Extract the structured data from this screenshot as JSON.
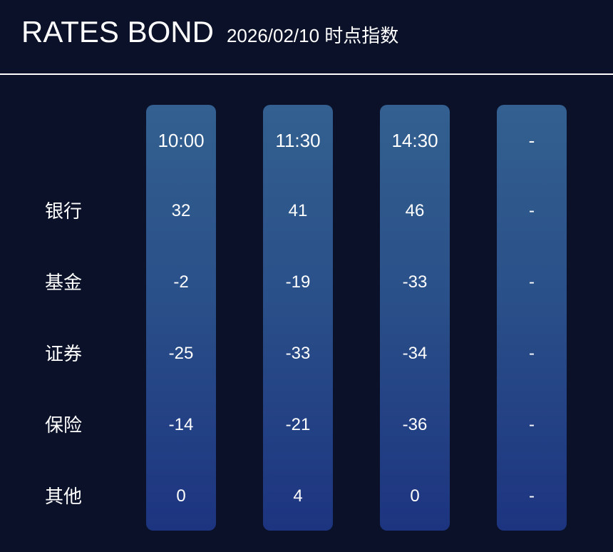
{
  "header": {
    "title": "RATES BOND",
    "subtitle": "2026/02/10 时点指数"
  },
  "table": {
    "column_headers": [
      "10:00",
      "11:30",
      "14:30",
      "-"
    ],
    "rows": [
      {
        "label": "银行",
        "values": [
          "32",
          "41",
          "46",
          "-"
        ]
      },
      {
        "label": "基金",
        "values": [
          "-2",
          "-19",
          "-33",
          "-"
        ]
      },
      {
        "label": "证券",
        "values": [
          "-25",
          "-33",
          "-34",
          "-"
        ]
      },
      {
        "label": "保险",
        "values": [
          "-14",
          "-21",
          "-36",
          "-"
        ]
      },
      {
        "label": "其他",
        "values": [
          "0",
          "4",
          "0",
          "-"
        ]
      }
    ]
  },
  "chart_data": {
    "type": "table",
    "title": "RATES BOND",
    "subtitle": "2026/02/10 时点指数",
    "columns": [
      "10:00",
      "11:30",
      "14:30",
      "-"
    ],
    "row_labels": [
      "银行",
      "基金",
      "证券",
      "保险",
      "其他"
    ],
    "series": [
      {
        "name": "10:00",
        "values": [
          32,
          -2,
          -25,
          -14,
          0
        ]
      },
      {
        "name": "11:30",
        "values": [
          41,
          -19,
          -33,
          -21,
          4
        ]
      },
      {
        "name": "14:30",
        "values": [
          46,
          -33,
          -34,
          -36,
          0
        ]
      },
      {
        "name": "-",
        "values": [
          null,
          null,
          null,
          null,
          null
        ]
      }
    ],
    "legend_position": "none",
    "grid": false
  },
  "colors": {
    "background": "#0A1128",
    "column_gradient_top": "#336090",
    "column_gradient_bottom": "#1D3480",
    "divider": "#FFFFFF",
    "text": "#FFFFFF"
  }
}
